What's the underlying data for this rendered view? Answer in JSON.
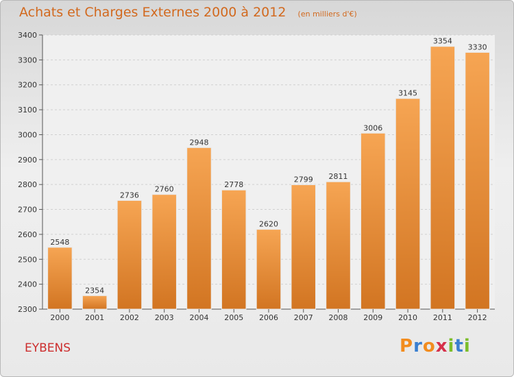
{
  "header": {
    "title": "Achats et Charges Externes 2000 à 2012",
    "subtitle": "(en milliers d'€)"
  },
  "footer": {
    "location": "EYBENS",
    "brand_letters": [
      "P",
      "r",
      "o",
      "x",
      "i",
      "t",
      "i"
    ],
    "brand_colors": [
      "#f28c1e",
      "#3a7fd0",
      "#f28c1e",
      "#d6304a",
      "#7cbd2b",
      "#3a7fd0",
      "#7cbd2b"
    ]
  },
  "chart_data": {
    "type": "bar",
    "title": "Achats et Charges Externes 2000 à 2012",
    "subtitle": "(en milliers d'€)",
    "categories": [
      "2000",
      "2001",
      "2002",
      "2003",
      "2004",
      "2005",
      "2006",
      "2007",
      "2008",
      "2009",
      "2010",
      "2011",
      "2012"
    ],
    "values": [
      2548,
      2354,
      2736,
      2760,
      2948,
      2778,
      2620,
      2799,
      2811,
      3006,
      3145,
      3354,
      3330
    ],
    "value_labels": [
      "2548",
      "2354",
      "2736",
      "2760",
      "2948",
      "2778",
      "2620",
      "2799",
      "2811",
      "3006",
      "3145",
      "3354",
      "3330"
    ],
    "yticks": [
      "2300",
      "2400",
      "2500",
      "2600",
      "2700",
      "2800",
      "2900",
      "3000",
      "3100",
      "3200",
      "3300",
      "3400"
    ],
    "ylim": [
      2300,
      3400
    ],
    "grid": true,
    "bar_color_top": "#f6a553",
    "bar_color_bottom": "#d27522"
  }
}
